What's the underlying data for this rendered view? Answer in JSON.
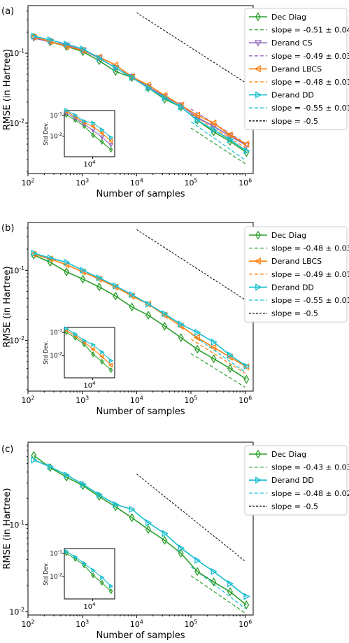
{
  "chart_data": [
    {
      "panel_label": "(a)",
      "type": "line",
      "scale": "log-log",
      "xlabel": "Number of samples",
      "ylabel": "RMSE (in Hartree)",
      "xlim": [
        100,
        1400000
      ],
      "ylim": [
        0.0019,
        0.48
      ],
      "xticks": [
        {
          "v": 100,
          "t": "10^2"
        },
        {
          "v": 1000,
          "t": "10^3"
        },
        {
          "v": 10000,
          "t": "10^4"
        },
        {
          "v": 100000,
          "t": "10^5"
        },
        {
          "v": 1000000,
          "t": "10^6"
        }
      ],
      "yticks": [
        {
          "v": 0.01,
          "t": "10^-2"
        },
        {
          "v": 0.1,
          "t": "10^-1"
        }
      ],
      "x": [
        128,
        256,
        512,
        1024,
        2048,
        4096,
        8192,
        16384,
        32768,
        65536,
        131072,
        262144,
        524288,
        1048576
      ],
      "series": [
        {
          "name": "Dec Diag",
          "color": "#2ca02c",
          "marker": "diamond",
          "values": [
            0.17,
            0.145,
            0.125,
            0.105,
            0.078,
            0.055,
            0.045,
            0.032,
            0.022,
            0.017,
            0.011,
            0.0075,
            0.0055,
            0.0038
          ]
        },
        {
          "name": "Derand CS",
          "color": "#9467bd",
          "marker": "tri-down",
          "values": [
            0.165,
            0.145,
            0.13,
            0.11,
            0.085,
            0.062,
            0.046,
            0.033,
            0.024,
            0.018,
            0.012,
            0.009,
            0.0065,
            0.0048
          ]
        },
        {
          "name": "Derand LBCS",
          "color": "#ff7f0e",
          "marker": "tri-left",
          "values": [
            0.17,
            0.148,
            0.125,
            0.11,
            0.088,
            0.068,
            0.046,
            0.035,
            0.025,
            0.018,
            0.013,
            0.01,
            0.0068,
            0.005
          ]
        },
        {
          "name": "Derand DD",
          "color": "#17becf",
          "marker": "tri-right",
          "values": [
            0.175,
            0.155,
            0.135,
            0.115,
            0.085,
            0.062,
            0.045,
            0.032,
            0.023,
            0.017,
            0.011,
            0.008,
            0.0058,
            0.004
          ]
        }
      ],
      "fits": [
        {
          "label": "slope = -0.51 ± 0.04",
          "color": "#2ca02c",
          "y_start": 0.0085,
          "slope": -0.51
        },
        {
          "label": "slope = -0.49 ± 0.03",
          "color": "#9467bd",
          "y_start": 0.016,
          "slope": -0.49
        },
        {
          "label": "slope = -0.48 ± 0.01",
          "color": "#ff7f0e",
          "y_start": 0.0135,
          "slope": -0.48
        },
        {
          "label": "slope = -0.55 ± 0.01",
          "color": "#17becf",
          "y_start": 0.0105,
          "slope": -0.55
        }
      ],
      "reference": {
        "label": "slope = -0.5",
        "color": "#000000",
        "x": [
          10000,
          1000000
        ],
        "y": [
          0.38,
          0.038
        ]
      },
      "inset": {
        "ylabel": "Std Dev.",
        "xtick_label": "10^4",
        "ytick_labels": [
          "10^-1",
          "10^-2"
        ]
      },
      "legend_placement": "outside-right"
    },
    {
      "panel_label": "(b)",
      "type": "line",
      "scale": "log-log",
      "xlabel": "Number of samples",
      "ylabel": "RMSE (in Hartree)",
      "xlim": [
        100,
        1400000
      ],
      "ylim": [
        0.0019,
        0.48
      ],
      "xticks": [
        {
          "v": 100,
          "t": "10^2"
        },
        {
          "v": 1000,
          "t": "10^3"
        },
        {
          "v": 10000,
          "t": "10^4"
        },
        {
          "v": 100000,
          "t": "10^5"
        },
        {
          "v": 1000000,
          "t": "10^6"
        }
      ],
      "yticks": [
        {
          "v": 0.01,
          "t": "10^-2"
        },
        {
          "v": 0.1,
          "t": "10^-1"
        }
      ],
      "x": [
        128,
        256,
        512,
        1024,
        2048,
        4096,
        8192,
        16384,
        32768,
        65536,
        131072,
        262144,
        524288,
        1048576
      ],
      "series": [
        {
          "name": "Dec Diag",
          "color": "#2ca02c",
          "marker": "diamond",
          "values": [
            0.165,
            0.13,
            0.095,
            0.075,
            0.058,
            0.043,
            0.03,
            0.023,
            0.016,
            0.011,
            0.0075,
            0.0055,
            0.004,
            0.0028
          ]
        },
        {
          "name": "Derand LBCS",
          "color": "#ff7f0e",
          "marker": "tri-left",
          "values": [
            0.17,
            0.145,
            0.12,
            0.095,
            0.075,
            0.058,
            0.043,
            0.033,
            0.023,
            0.016,
            0.011,
            0.008,
            0.0058,
            0.0042
          ]
        },
        {
          "name": "Derand DD",
          "color": "#17becf",
          "marker": "tri-right",
          "values": [
            0.175,
            0.15,
            0.13,
            0.1,
            0.078,
            0.06,
            0.045,
            0.033,
            0.024,
            0.017,
            0.013,
            0.0095,
            0.0062,
            0.0043
          ]
        }
      ],
      "fits": [
        {
          "label": "slope = -0.48 ± 0.03",
          "color": "#2ca02c",
          "y_start": 0.0065,
          "slope": -0.48
        },
        {
          "label": "slope = -0.49 ± 0.01",
          "color": "#ff7f0e",
          "y_start": 0.0105,
          "slope": -0.49
        },
        {
          "label": "slope = -0.55 ± 0.01",
          "color": "#17becf",
          "y_start": 0.0125,
          "slope": -0.55
        }
      ],
      "reference": {
        "label": "slope = -0.5",
        "color": "#000000",
        "x": [
          10000,
          1000000
        ],
        "y": [
          0.38,
          0.038
        ]
      },
      "inset": {
        "ylabel": "Std Dev.",
        "xtick_label": "10^4",
        "ytick_labels": [
          "10^-1",
          "10^-2"
        ]
      },
      "legend_placement": "outside-right"
    },
    {
      "panel_label": "(c)",
      "type": "line",
      "scale": "log-log",
      "xlabel": "Number of samples",
      "ylabel": "RMSE (in Hartree)",
      "xlim": [
        100,
        1400000
      ],
      "ylim": [
        0.0092,
        0.88
      ],
      "xticks": [
        {
          "v": 100,
          "t": "10^2"
        },
        {
          "v": 1000,
          "t": "10^3"
        },
        {
          "v": 10000,
          "t": "10^4"
        },
        {
          "v": 100000,
          "t": "10^5"
        },
        {
          "v": 1000000,
          "t": "10^6"
        }
      ],
      "yticks": [
        {
          "v": 0.01,
          "t": "10^-2"
        },
        {
          "v": 0.1,
          "t": "10^-1"
        }
      ],
      "x": [
        128,
        256,
        512,
        1024,
        2048,
        4096,
        8192,
        16384,
        32768,
        65536,
        131072,
        262144,
        524288,
        1048576
      ],
      "series": [
        {
          "name": "Dec Diag",
          "color": "#2ca02c",
          "marker": "diamond",
          "values": [
            0.62,
            0.45,
            0.35,
            0.28,
            0.21,
            0.16,
            0.12,
            0.088,
            0.066,
            0.047,
            0.029,
            0.022,
            0.017,
            0.012
          ]
        },
        {
          "name": "Derand DD",
          "color": "#17becf",
          "marker": "tri-right",
          "values": [
            0.55,
            0.46,
            0.37,
            0.29,
            0.22,
            0.17,
            0.15,
            0.105,
            0.079,
            0.054,
            0.039,
            0.029,
            0.021,
            0.015
          ]
        }
      ],
      "fits": [
        {
          "label": "slope = -0.43 ± 0.03",
          "color": "#2ca02c",
          "y_start": 0.026,
          "slope": -0.43
        },
        {
          "label": "slope = -0.48 ± 0.02",
          "color": "#17becf",
          "y_start": 0.033,
          "slope": -0.48
        }
      ],
      "reference": {
        "label": "slope = -0.5",
        "color": "#000000",
        "x": [
          10000,
          1000000
        ],
        "y": [
          0.38,
          0.038
        ]
      },
      "inset": {
        "ylabel": "Std Dev.",
        "xtick_label": "10^4",
        "ytick_labels": [
          "10^-1",
          "10^-2"
        ]
      },
      "legend_placement": "outside-right"
    }
  ]
}
